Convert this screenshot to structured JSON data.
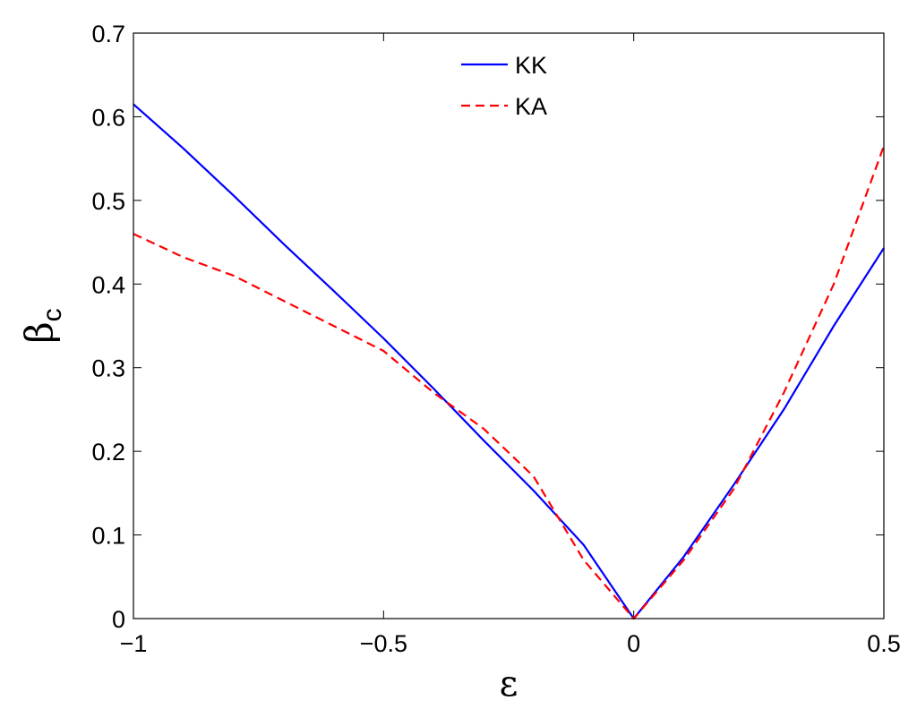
{
  "chart_data": {
    "type": "line",
    "xlabel": "ε",
    "ylabel": "β",
    "ylabel_subscript": "c",
    "xlim": [
      -1,
      0.5
    ],
    "ylim": [
      0,
      0.7
    ],
    "x_ticks": [
      -1,
      -0.5,
      0,
      0.5
    ],
    "x_tick_labels": [
      "−1",
      "−0.5",
      "0",
      "0.5"
    ],
    "y_ticks": [
      0,
      0.1,
      0.2,
      0.3,
      0.4,
      0.5,
      0.6,
      0.7
    ],
    "y_tick_labels": [
      "0",
      "0.1",
      "0.2",
      "0.3",
      "0.4",
      "0.5",
      "0.6",
      "0.7"
    ],
    "grid": false,
    "legend_position": "top-center",
    "series": [
      {
        "name": "KK",
        "color": "#0000ff",
        "dash": "solid",
        "x": [
          -1,
          -0.9,
          -0.8,
          -0.7,
          -0.6,
          -0.5,
          -0.4,
          -0.3,
          -0.2,
          -0.1,
          0,
          0.1,
          0.2,
          0.3,
          0.4,
          0.5
        ],
        "y": [
          0.615,
          0.562,
          0.506,
          0.448,
          0.392,
          0.335,
          0.275,
          0.213,
          0.153,
          0.088,
          0,
          0.074,
          0.16,
          0.25,
          0.35,
          0.443
        ]
      },
      {
        "name": "KA",
        "color": "#ff0000",
        "dash": "dashed",
        "x": [
          -1,
          -0.9,
          -0.8,
          -0.7,
          -0.6,
          -0.5,
          -0.4,
          -0.3,
          -0.2,
          -0.1,
          0,
          0.1,
          0.2,
          0.3,
          0.4,
          0.5
        ],
        "y": [
          0.46,
          0.432,
          0.41,
          0.38,
          0.35,
          0.32,
          0.27,
          0.227,
          0.17,
          0.07,
          0,
          0.07,
          0.155,
          0.27,
          0.4,
          0.565
        ]
      }
    ]
  }
}
